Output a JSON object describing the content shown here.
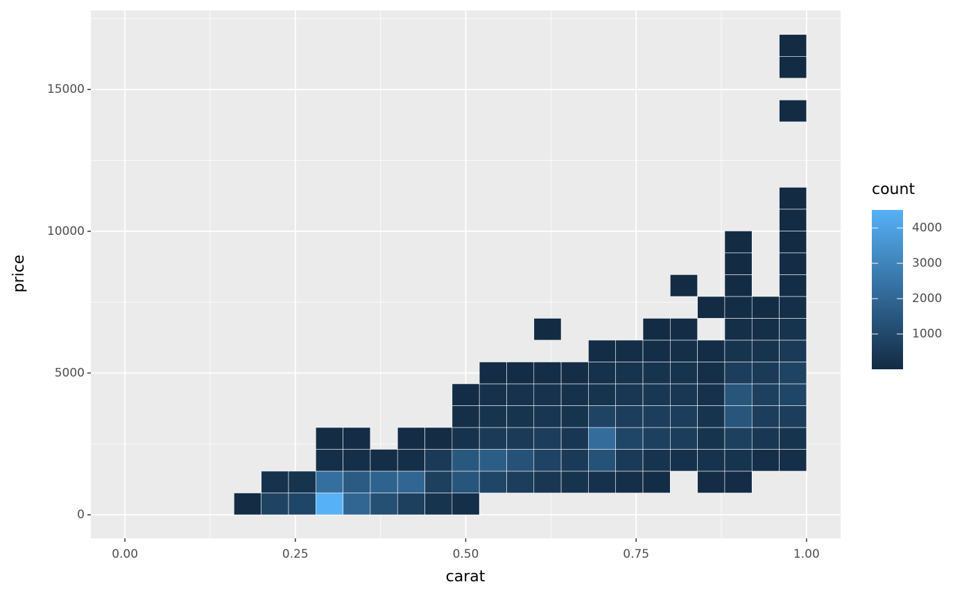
{
  "chart_data": {
    "type": "bin2d",
    "x_label": "carat",
    "y_label": "price",
    "legend_title": "count",
    "xlim": [
      -0.05,
      1.05
    ],
    "ylim": [
      -830,
      17790
    ],
    "xticks": [
      {
        "value": 0,
        "label": "0.00"
      },
      {
        "value": 0.25,
        "label": "0.25"
      },
      {
        "value": 0.5,
        "label": "0.50"
      },
      {
        "value": 0.75,
        "label": "0.75"
      },
      {
        "value": 1,
        "label": "1.00"
      }
    ],
    "yticks": [
      0,
      5000,
      10000,
      15000
    ],
    "x_minor_ticks": [
      0.125,
      0.375,
      0.625,
      0.875
    ],
    "y_minor_ticks": [
      2500,
      7500,
      12500,
      17500
    ],
    "binwidth": [
      0.04,
      770
    ],
    "color_low": "#132B43",
    "color_high": "#56B1F7",
    "clim": [
      1,
      4510
    ],
    "cticks": [
      1000,
      2000,
      3000,
      4000
    ],
    "x": [
      0.18,
      0.22,
      0.22,
      0.26,
      0.26,
      0.3,
      0.3,
      0.3,
      0.3,
      0.34,
      0.34,
      0.34,
      0.34,
      0.38,
      0.38,
      0.38,
      0.42,
      0.42,
      0.42,
      0.42,
      0.46,
      0.46,
      0.46,
      0.46,
      0.5,
      0.5,
      0.5,
      0.5,
      0.5,
      0.5,
      0.54,
      0.54,
      0.54,
      0.54,
      0.54,
      0.54,
      0.58,
      0.58,
      0.58,
      0.58,
      0.58,
      0.58,
      0.62,
      0.62,
      0.62,
      0.62,
      0.62,
      0.62,
      0.62,
      0.66,
      0.66,
      0.66,
      0.66,
      0.66,
      0.66,
      0.7,
      0.7,
      0.7,
      0.7,
      0.7,
      0.7,
      0.7,
      0.74,
      0.74,
      0.74,
      0.74,
      0.74,
      0.74,
      0.74,
      0.78,
      0.78,
      0.78,
      0.78,
      0.78,
      0.78,
      0.78,
      0.78,
      0.82,
      0.82,
      0.82,
      0.82,
      0.82,
      0.82,
      0.82,
      0.82,
      0.86,
      0.86,
      0.86,
      0.86,
      0.86,
      0.86,
      0.86,
      0.86,
      0.9,
      0.9,
      0.9,
      0.9,
      0.9,
      0.9,
      0.9,
      0.9,
      0.9,
      0.9,
      0.9,
      0.9,
      0.94,
      0.94,
      0.94,
      0.94,
      0.94,
      0.94,
      0.94,
      0.94,
      0.98,
      0.98,
      0.98,
      0.98,
      0.98,
      0.98,
      0.98,
      0.98,
      0.98,
      0.98,
      0.98,
      0.98,
      0.98,
      0.98,
      0.98,
      0.98
    ],
    "y": [
      385,
      385,
      1155,
      385,
      1155,
      385,
      1155,
      1925,
      2695,
      385,
      1155,
      1925,
      2695,
      385,
      1155,
      1925,
      385,
      1155,
      1925,
      2695,
      385,
      1155,
      1925,
      2695,
      385,
      1155,
      1925,
      2695,
      3465,
      4235,
      1155,
      1925,
      2695,
      3465,
      4235,
      5005,
      1155,
      1925,
      2695,
      3465,
      4235,
      5005,
      1155,
      1925,
      2695,
      3465,
      4235,
      5005,
      6545,
      1155,
      1925,
      2695,
      3465,
      4235,
      5005,
      1155,
      1925,
      2695,
      3465,
      4235,
      5005,
      5775,
      1155,
      1925,
      2695,
      3465,
      4235,
      5005,
      5775,
      1155,
      1925,
      2695,
      3465,
      4235,
      5005,
      5775,
      6545,
      1925,
      2695,
      3465,
      4235,
      5005,
      5775,
      6545,
      8085,
      1155,
      1925,
      2695,
      3465,
      4235,
      5005,
      5775,
      7315,
      1155,
      1925,
      2695,
      3465,
      4235,
      5005,
      5775,
      6545,
      7315,
      8085,
      8855,
      9625,
      1925,
      2695,
      3465,
      4235,
      5005,
      5775,
      6545,
      7315,
      1925,
      2695,
      3465,
      4235,
      5005,
      5775,
      6545,
      7315,
      8085,
      8855,
      9625,
      10395,
      11165,
      14245,
      15785,
      16555
    ],
    "values": [
      60,
      800,
      250,
      900,
      300,
      4500,
      2300,
      150,
      60,
      2000,
      1600,
      150,
      50,
      1200,
      1900,
      100,
      700,
      2000,
      150,
      40,
      300,
      700,
      500,
      60,
      150,
      1400,
      1500,
      250,
      150,
      50,
      900,
      1700,
      500,
      300,
      200,
      50,
      600,
      1300,
      500,
      300,
      250,
      80,
      400,
      800,
      600,
      350,
      250,
      100,
      5,
      300,
      500,
      400,
      300,
      200,
      100,
      200,
      1300,
      2200,
      800,
      300,
      200,
      80,
      150,
      500,
      900,
      600,
      400,
      300,
      100,
      80,
      300,
      700,
      600,
      400,
      300,
      100,
      30,
      200,
      600,
      600,
      400,
      300,
      150,
      50,
      5,
      50,
      250,
      300,
      300,
      200,
      150,
      80,
      20,
      40,
      300,
      700,
      1400,
      1400,
      600,
      300,
      150,
      80,
      30,
      10,
      5,
      150,
      400,
      600,
      700,
      500,
      300,
      150,
      60,
      150,
      300,
      600,
      900,
      800,
      500,
      300,
      150,
      80,
      40,
      20,
      10,
      5,
      2,
      2,
      2
    ]
  }
}
